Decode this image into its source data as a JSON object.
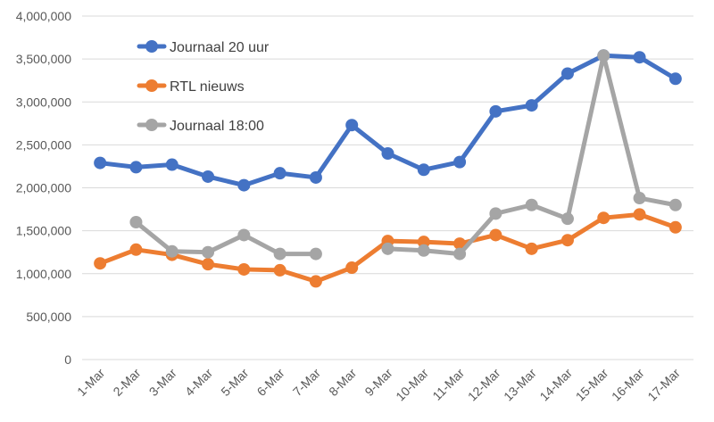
{
  "chart_data": {
    "type": "line",
    "categories": [
      "1-Mar",
      "2-Mar",
      "3-Mar",
      "4-Mar",
      "5-Mar",
      "6-Mar",
      "7-Mar",
      "8-Mar",
      "9-Mar",
      "10-Mar",
      "11-Mar",
      "12-Mar",
      "13-Mar",
      "14-Mar",
      "15-Mar",
      "16-Mar",
      "17-Mar"
    ],
    "ylim": [
      0,
      4000000
    ],
    "yticks": [
      "0",
      "500,000",
      "1,000,000",
      "1,500,000",
      "2,000,000",
      "2,500,000",
      "3,000,000",
      "3,500,000",
      "4,000,000"
    ],
    "grid": true,
    "legend_position": "top-left inside",
    "series": [
      {
        "name": "Journaal 20 uur",
        "color": "#4472C4",
        "values": [
          2290000,
          2240000,
          2270000,
          2130000,
          2030000,
          2170000,
          2120000,
          2730000,
          2400000,
          2210000,
          2300000,
          2890000,
          2960000,
          3330000,
          3540000,
          3520000,
          3270000
        ]
      },
      {
        "name": "RTL nieuws",
        "color": "#ED7D31",
        "values": [
          1120000,
          1280000,
          1220000,
          1110000,
          1050000,
          1040000,
          910000,
          1070000,
          1380000,
          1370000,
          1350000,
          1450000,
          1290000,
          1390000,
          1650000,
          1690000,
          1540000
        ]
      },
      {
        "name": "Journaal 18:00",
        "color": "#A5A5A5",
        "values": [
          null,
          1600000,
          1260000,
          1250000,
          1450000,
          1230000,
          1230000,
          null,
          1290000,
          1270000,
          1230000,
          1700000,
          1800000,
          1640000,
          3540000,
          1880000,
          1800000
        ]
      }
    ]
  }
}
